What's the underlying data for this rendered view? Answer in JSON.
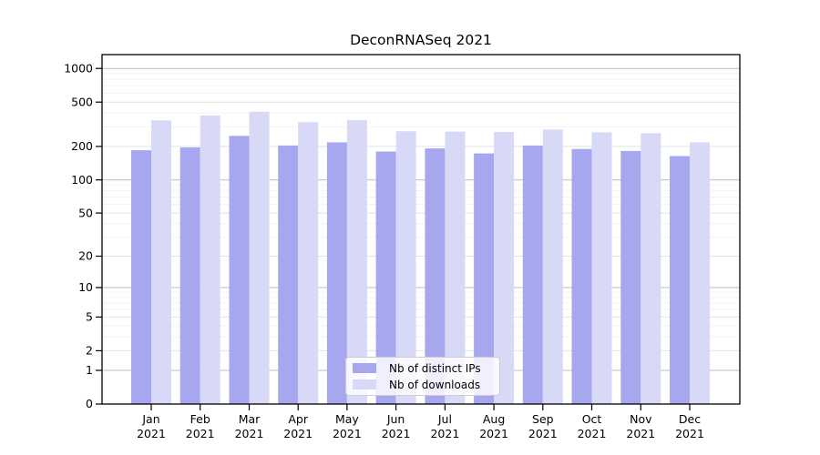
{
  "title": "DeconRNASeq 2021",
  "chart_data": {
    "type": "bar",
    "title": "DeconRNASeq 2021",
    "categories": [
      "Jan 2021",
      "Feb 2021",
      "Mar 2021",
      "Apr 2021",
      "May 2021",
      "Jun 2021",
      "Jul 2021",
      "Aug 2021",
      "Sep 2021",
      "Oct 2021",
      "Nov 2021",
      "Dec 2021"
    ],
    "x_tick_months": [
      "Jan",
      "Feb",
      "Mar",
      "Apr",
      "May",
      "Jun",
      "Jul",
      "Aug",
      "Sep",
      "Oct",
      "Nov",
      "Dec"
    ],
    "x_tick_year": "2021",
    "series": [
      {
        "name": "Nb of distinct IPs",
        "color": "#a7a7f0",
        "values": [
          185,
          196,
          249,
          204,
          218,
          180,
          192,
          173,
          204,
          190,
          182,
          164
        ]
      },
      {
        "name": "Nb of downloads",
        "color": "#d8d8f7",
        "values": [
          343,
          379,
          410,
          331,
          345,
          274,
          272,
          270,
          284,
          268,
          263,
          218
        ]
      }
    ],
    "y_ticks": [
      0,
      1,
      2,
      5,
      10,
      20,
      50,
      100,
      200,
      500,
      1000
    ],
    "y_scale": "log1p",
    "ylim": [
      0,
      1330
    ],
    "xlabel": "",
    "ylabel": "",
    "grid": true,
    "legend_position": "lower-center-inside"
  },
  "colors": {
    "background": "#ffffff",
    "axis": "#000000",
    "text": "#000000",
    "grid_minor": "#f3f3f3",
    "grid_major": "#e2e2e2",
    "grid_decade": "#bdbdbd",
    "legend_border": "#cccccc"
  }
}
